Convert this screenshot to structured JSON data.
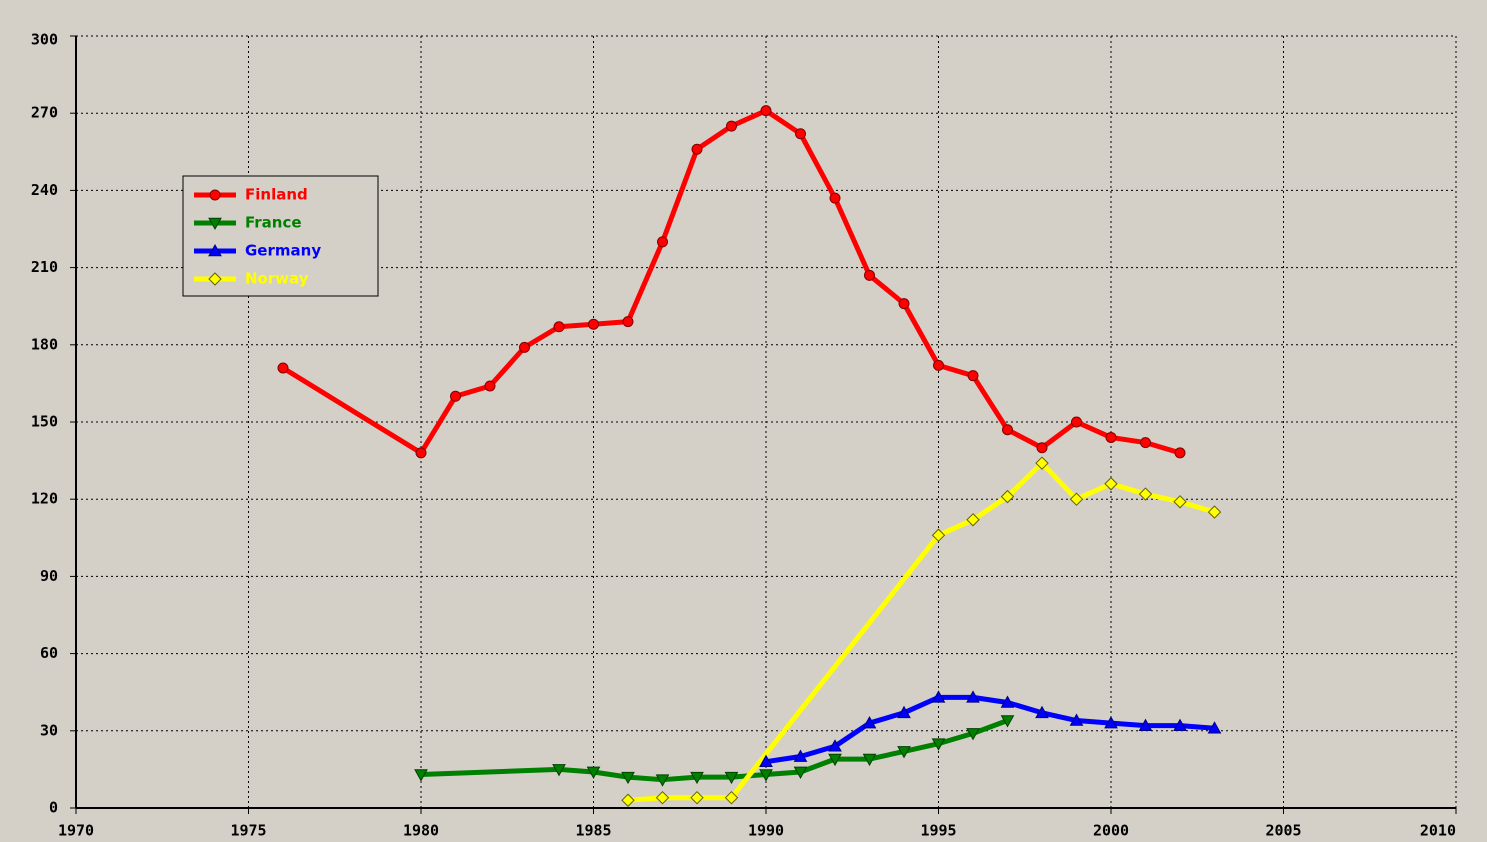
{
  "chart_data": {
    "type": "line",
    "xlim": [
      1970,
      2010
    ],
    "xticks": [
      1970,
      1975,
      1980,
      1985,
      1990,
      1995,
      2000,
      2005,
      2010
    ],
    "ylim": [
      0,
      300
    ],
    "yticks": [
      0,
      30,
      60,
      90,
      120,
      150,
      180,
      210,
      240,
      270,
      300
    ],
    "grid": true,
    "legend": "upper left",
    "series": [
      {
        "name": "Finland",
        "color": "#ff0000",
        "marker": "circle",
        "x": [
          1976,
          1980,
          1981,
          1982,
          1983,
          1984,
          1985,
          1986,
          1987,
          1988,
          1989,
          1990,
          1991,
          1992,
          1993,
          1994,
          1995,
          1996,
          1997,
          1998,
          1999,
          2000,
          2001,
          2002
        ],
        "values": [
          171,
          138,
          160,
          164,
          179,
          187,
          188,
          189,
          220,
          256,
          265,
          271,
          262,
          237,
          207,
          196,
          172,
          168,
          147,
          140,
          150,
          144,
          142,
          138
        ]
      },
      {
        "name": "France",
        "color": "#008000",
        "marker": "triangle-down",
        "x": [
          1980,
          1984,
          1985,
          1986,
          1987,
          1988,
          1989,
          1990,
          1991,
          1992,
          1993,
          1994,
          1995,
          1996,
          1997
        ],
        "values": [
          13,
          15,
          14,
          12,
          11,
          12,
          12,
          13,
          14,
          19,
          19,
          22,
          25,
          29,
          34
        ]
      },
      {
        "name": "Germany",
        "color": "#0000ff",
        "marker": "triangle-up",
        "x": [
          1990,
          1991,
          1992,
          1993,
          1994,
          1995,
          1996,
          1997,
          1998,
          1999,
          2000,
          2001,
          2002,
          2003
        ],
        "values": [
          18,
          20,
          24,
          33,
          37,
          43,
          43,
          41,
          37,
          34,
          33,
          32,
          32,
          31
        ]
      },
      {
        "name": "Norway",
        "color": "#ffff00",
        "marker": "diamond",
        "x": [
          1986,
          1987,
          1988,
          1989,
          1995,
          1996,
          1997,
          1998,
          1999,
          2000,
          2001,
          2002,
          2003
        ],
        "values": [
          3,
          4,
          4,
          4,
          106,
          112,
          121,
          134,
          120,
          126,
          122,
          119,
          115
        ]
      }
    ]
  }
}
